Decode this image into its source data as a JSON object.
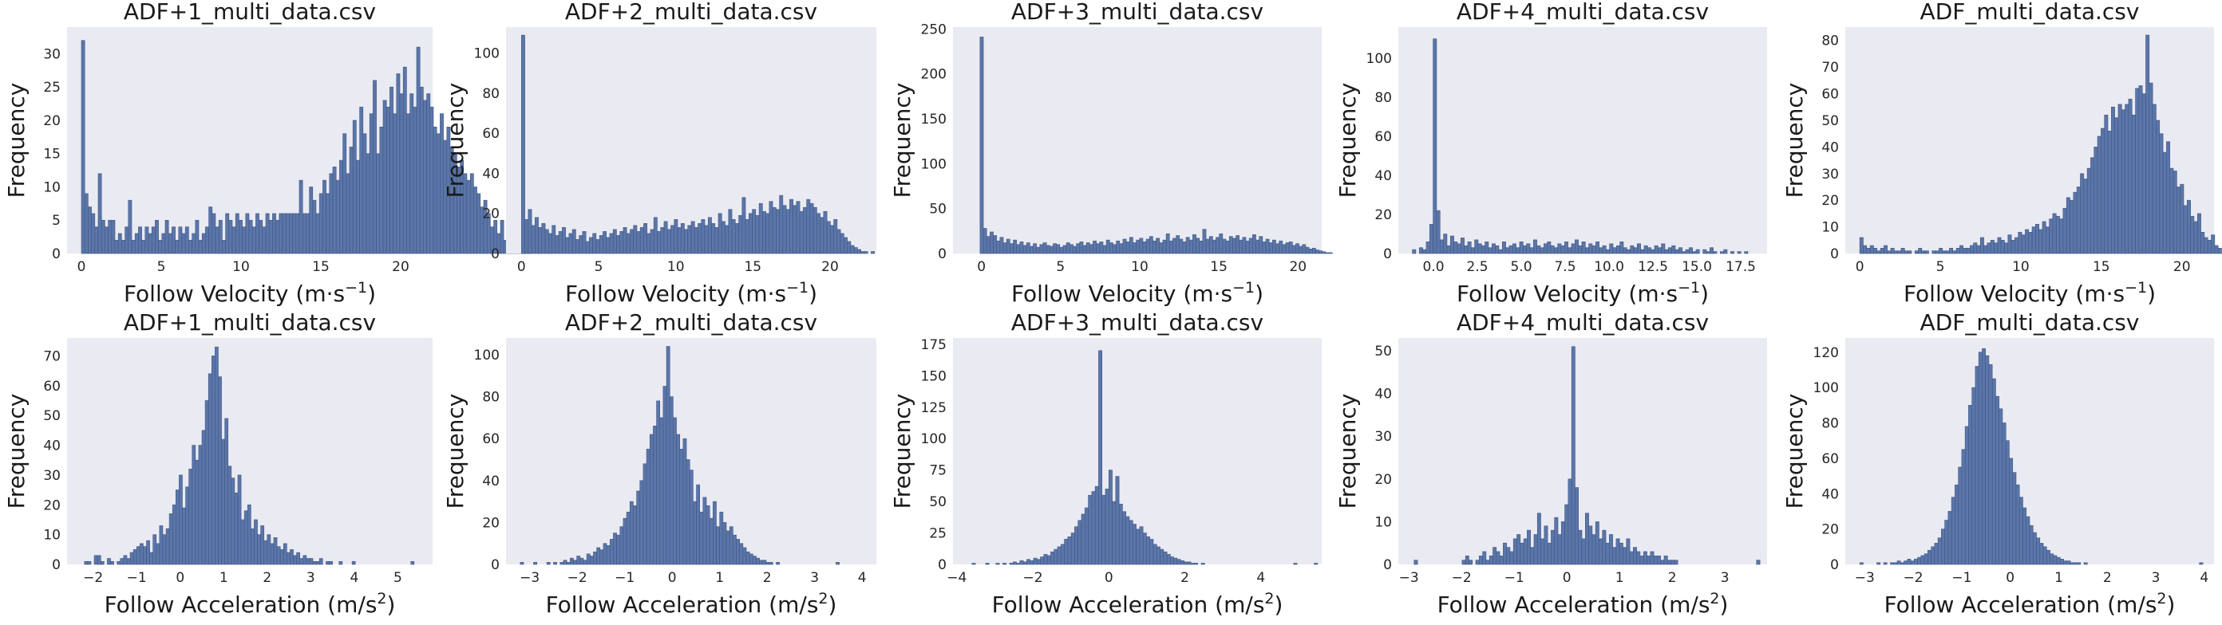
{
  "figure": {
    "axis_labels": {
      "velocity_x": "Follow Velocity (m·s",
      "velocity_x_sup": "−1",
      "velocity_x_end": ")",
      "accel_x": "Follow Acceleration (m/s",
      "accel_x_sup": "2",
      "accel_x_end": ")",
      "y": "Frequency"
    }
  },
  "chart_data": [
    {
      "type": "bar",
      "title": "ADF+1_multi_data.csv",
      "xlabel": "Follow Velocity (m·s−1)",
      "ylabel": "Frequency",
      "xlim": [
        -0.9,
        22.0
      ],
      "ylim": [
        0,
        34
      ],
      "xticks": [
        0,
        5,
        10,
        15,
        20
      ],
      "yticks": [
        0,
        5,
        10,
        15,
        20,
        25,
        30
      ],
      "bin_start": 0.0,
      "bin_width": 0.21,
      "counts": [
        32,
        9,
        7,
        6,
        4,
        12,
        5,
        4,
        5,
        5,
        2,
        3,
        2,
        4,
        8,
        2,
        3,
        4,
        2,
        4,
        3,
        4,
        5,
        2,
        3,
        5,
        3,
        4,
        2,
        4,
        3,
        4,
        2,
        3,
        5,
        2,
        3,
        4,
        7,
        6,
        4,
        5,
        2,
        6,
        5,
        4,
        6,
        5,
        4,
        6,
        5,
        4,
        6,
        5,
        4,
        6,
        5,
        6,
        5,
        6,
        6,
        6,
        6,
        6,
        6,
        11,
        6,
        6,
        10,
        8,
        6,
        9,
        11,
        9,
        12,
        13,
        11,
        14,
        18,
        12,
        16,
        20,
        14,
        22,
        18,
        15,
        21,
        26,
        15,
        19,
        23,
        22,
        25,
        21,
        27,
        24,
        28,
        21,
        24,
        22,
        31,
        25,
        23,
        24,
        22,
        19,
        18,
        21,
        17,
        19,
        16,
        15,
        13,
        14,
        12,
        11,
        12,
        10,
        9,
        7,
        8,
        6,
        4,
        5,
        3,
        5,
        2,
        4,
        3,
        2,
        1,
        2,
        3,
        1,
        0,
        0,
        2,
        0,
        0,
        1
      ],
      "panel": "v1"
    },
    {
      "type": "bar",
      "title": "ADF+2_multi_data.csv",
      "xlabel": "Follow Velocity (m·s−1)",
      "ylabel": "Frequency",
      "xlim": [
        -1.0,
        23.0
      ],
      "ylim": [
        0,
        113
      ],
      "xticks": [
        0,
        5,
        10,
        15,
        20
      ],
      "yticks": [
        0,
        20,
        40,
        60,
        80,
        100
      ],
      "bin_start": 0.0,
      "bin_width": 0.22,
      "counts": [
        109,
        17,
        22,
        14,
        18,
        13,
        15,
        12,
        10,
        14,
        9,
        11,
        13,
        8,
        10,
        12,
        7,
        9,
        11,
        6,
        8,
        10,
        7,
        9,
        11,
        8,
        10,
        12,
        9,
        11,
        13,
        10,
        12,
        14,
        11,
        13,
        15,
        10,
        12,
        18,
        11,
        13,
        16,
        12,
        14,
        17,
        13,
        15,
        12,
        14,
        16,
        13,
        15,
        17,
        14,
        18,
        15,
        13,
        20,
        16,
        14,
        22,
        17,
        15,
        19,
        28,
        17,
        20,
        22,
        19,
        25,
        21,
        20,
        26,
        23,
        22,
        29,
        24,
        22,
        27,
        24,
        26,
        21,
        23,
        27,
        25,
        23,
        20,
        18,
        21,
        16,
        14,
        17,
        12,
        10,
        8,
        6,
        4,
        3,
        2,
        1,
        1,
        0,
        1
      ],
      "panel": "v2"
    },
    {
      "type": "bar",
      "title": "ADF+3_multi_data.csv",
      "xlabel": "Follow Velocity (m·s−1)",
      "ylabel": "Frequency",
      "xlim": [
        -1.8,
        21.5
      ],
      "ylim": [
        0,
        252
      ],
      "xticks": [
        0,
        5,
        10,
        15,
        20
      ],
      "yticks": [
        0,
        50,
        100,
        150,
        200,
        250
      ],
      "bin_start": -0.3,
      "bin_width": 0.21,
      "counts": [
        0,
        241,
        28,
        19,
        24,
        20,
        14,
        18,
        12,
        16,
        11,
        15,
        10,
        13,
        9,
        12,
        8,
        11,
        7,
        10,
        12,
        9,
        8,
        11,
        10,
        7,
        9,
        12,
        10,
        8,
        11,
        13,
        9,
        12,
        10,
        14,
        11,
        13,
        9,
        15,
        12,
        10,
        14,
        11,
        16,
        13,
        18,
        12,
        15,
        17,
        13,
        16,
        19,
        14,
        17,
        12,
        15,
        22,
        14,
        17,
        20,
        16,
        13,
        18,
        15,
        21,
        17,
        14,
        27,
        16,
        19,
        15,
        18,
        22,
        16,
        14,
        19,
        17,
        20,
        15,
        18,
        14,
        17,
        21,
        15,
        19,
        13,
        16,
        12,
        15,
        11,
        14,
        10,
        12,
        13,
        9,
        11,
        8,
        10,
        7,
        5,
        6,
        4,
        3,
        2,
        1,
        1,
        0,
        0
      ],
      "panel": "v3"
    },
    {
      "type": "bar",
      "title": "ADF+4_multi_data.csv",
      "xlabel": "Follow Velocity (m·s−1)",
      "ylabel": "Frequency",
      "xlim": [
        -2.0,
        19.0
      ],
      "ylim": [
        0,
        116
      ],
      "xticks": [
        0.0,
        2.5,
        5.0,
        7.5,
        10.0,
        12.5,
        15.0,
        17.5
      ],
      "yticks": [
        0,
        20,
        40,
        60,
        80,
        100
      ],
      "bin_start": -1.2,
      "bin_width": 0.197,
      "counts": [
        2,
        0,
        3,
        2,
        6,
        15,
        110,
        22,
        7,
        10,
        4,
        9,
        6,
        5,
        8,
        4,
        6,
        3,
        7,
        5,
        4,
        6,
        3,
        5,
        4,
        2,
        6,
        3,
        4,
        5,
        3,
        6,
        4,
        5,
        3,
        7,
        4,
        3,
        5,
        6,
        4,
        3,
        5,
        4,
        6,
        3,
        5,
        7,
        4,
        6,
        3,
        5,
        4,
        6,
        3,
        4,
        2,
        5,
        3,
        4,
        6,
        3,
        2,
        4,
        3,
        5,
        2,
        4,
        3,
        2,
        4,
        3,
        5,
        2,
        3,
        4,
        2,
        3,
        1,
        2,
        3,
        1,
        2,
        0,
        2,
        1,
        3,
        1,
        0,
        1,
        2,
        0,
        1,
        0,
        1,
        0,
        1
      ],
      "panel": "v4"
    },
    {
      "type": "bar",
      "title": "ADF_multi_data.csv",
      "xlabel": "Follow Velocity (m·s−1)",
      "ylabel": "Frequency",
      "xlim": [
        -0.9,
        22.0
      ],
      "ylim": [
        0,
        85
      ],
      "xticks": [
        0,
        5,
        10,
        15,
        20
      ],
      "yticks": [
        0,
        10,
        20,
        30,
        40,
        50,
        60,
        70,
        80
      ],
      "bin_start": 0.0,
      "bin_width": 0.214,
      "counts": [
        6,
        3,
        2,
        3,
        2,
        1,
        2,
        3,
        1,
        2,
        1,
        1,
        2,
        1,
        1,
        0,
        1,
        2,
        1,
        1,
        0,
        1,
        1,
        2,
        1,
        1,
        2,
        1,
        2,
        3,
        2,
        2,
        3,
        4,
        3,
        6,
        3,
        4,
        5,
        4,
        6,
        5,
        4,
        7,
        5,
        6,
        8,
        7,
        9,
        8,
        10,
        11,
        9,
        12,
        10,
        13,
        15,
        14,
        13,
        17,
        21,
        20,
        23,
        25,
        30,
        28,
        32,
        36,
        40,
        44,
        47,
        52,
        46,
        55,
        51,
        56,
        54,
        56,
        58,
        52,
        62,
        63,
        60,
        82,
        64,
        56,
        50,
        45,
        38,
        42,
        32,
        31,
        25,
        26,
        18,
        20,
        14,
        12,
        15,
        8,
        6,
        5,
        7,
        3,
        2
      ],
      "panel": "v5"
    },
    {
      "type": "bar",
      "title": "ADF+1_multi_data.csv",
      "xlabel": "Follow Acceleration (m/s2)",
      "ylabel": "Frequency",
      "xlim": [
        -2.6,
        5.8
      ],
      "ylim": [
        0,
        76
      ],
      "xticks": [
        -2,
        -1,
        0,
        1,
        2,
        3,
        4,
        5
      ],
      "yticks": [
        0,
        10,
        20,
        30,
        40,
        50,
        60,
        70
      ],
      "bin_start": -2.2,
      "bin_width": 0.075,
      "counts": [
        1,
        1,
        0,
        3,
        3,
        1,
        0,
        2,
        1,
        0,
        1,
        2,
        3,
        2,
        4,
        5,
        6,
        7,
        6,
        8,
        4,
        10,
        7,
        13,
        10,
        12,
        17,
        20,
        25,
        30,
        19,
        26,
        32,
        40,
        35,
        40,
        45,
        55,
        64,
        70,
        73,
        63,
        42,
        49,
        33,
        29,
        24,
        30,
        15,
        18,
        20,
        12,
        15,
        10,
        13,
        8,
        10,
        7,
        9,
        6,
        5,
        7,
        4,
        5,
        3,
        4,
        2,
        3,
        2,
        2,
        1,
        1,
        2,
        0,
        1,
        1,
        0,
        0,
        1,
        0,
        0,
        0,
        1,
        0,
        0,
        0,
        0,
        0,
        0,
        0,
        0,
        0,
        0,
        0,
        0,
        0,
        0,
        0,
        0,
        0,
        1
      ],
      "panel": "a1"
    },
    {
      "type": "bar",
      "title": "ADF+2_multi_data.csv",
      "xlabel": "Follow Acceleration (m/s2)",
      "ylabel": "Frequency",
      "xlim": [
        -3.5,
        4.3
      ],
      "ylim": [
        0,
        108
      ],
      "xticks": [
        -3,
        -2,
        -1,
        0,
        1,
        2,
        3,
        4
      ],
      "yticks": [
        0,
        20,
        40,
        60,
        80,
        100
      ],
      "bin_start": -3.2,
      "bin_width": 0.07,
      "counts": [
        1,
        0,
        0,
        0,
        1,
        0,
        0,
        0,
        1,
        0,
        1,
        0,
        1,
        2,
        1,
        3,
        2,
        4,
        3,
        2,
        5,
        4,
        6,
        8,
        7,
        10,
        9,
        12,
        15,
        14,
        18,
        22,
        25,
        30,
        28,
        35,
        40,
        48,
        55,
        62,
        66,
        78,
        70,
        85,
        104,
        80,
        70,
        62,
        55,
        60,
        50,
        45,
        30,
        38,
        25,
        32,
        28,
        22,
        30,
        18,
        25,
        20,
        16,
        18,
        14,
        12,
        10,
        8,
        6,
        5,
        4,
        3,
        2,
        2,
        1,
        1,
        0,
        1,
        0,
        0,
        0,
        0,
        0,
        0,
        0,
        0,
        0,
        0,
        0,
        0,
        0,
        0,
        0,
        0,
        0,
        1
      ],
      "panel": "a2"
    },
    {
      "type": "bar",
      "title": "ADF+3_multi_data.csv",
      "xlabel": "Follow Acceleration (m/s2)",
      "ylabel": "Frequency",
      "xlim": [
        -4.1,
        5.6
      ],
      "ylim": [
        0,
        180
      ],
      "xticks": [
        -4,
        -2,
        0,
        2,
        4
      ],
      "yticks": [
        0,
        25,
        50,
        75,
        100,
        125,
        150,
        175
      ],
      "bin_start": -3.6,
      "bin_width": 0.09,
      "counts": [
        1,
        0,
        0,
        0,
        1,
        0,
        0,
        1,
        0,
        1,
        0,
        1,
        2,
        1,
        3,
        2,
        4,
        3,
        5,
        4,
        6,
        8,
        7,
        10,
        12,
        14,
        16,
        20,
        22,
        25,
        30,
        35,
        40,
        45,
        55,
        58,
        62,
        170,
        55,
        60,
        75,
        50,
        70,
        48,
        42,
        38,
        35,
        32,
        28,
        30,
        25,
        22,
        20,
        16,
        14,
        12,
        10,
        8,
        6,
        5,
        4,
        3,
        2,
        2,
        1,
        1,
        0,
        1,
        0,
        0,
        0,
        0,
        0,
        0,
        0,
        0,
        0,
        0,
        0,
        0,
        0,
        0,
        0,
        0,
        0,
        0,
        0,
        0,
        0,
        0,
        0,
        0,
        0,
        0,
        1,
        0,
        0,
        0,
        0,
        0,
        1
      ],
      "panel": "a3"
    },
    {
      "type": "bar",
      "title": "ADF+4_multi_data.csv",
      "xlabel": "Follow Acceleration (m/s2)",
      "ylabel": "Frequency",
      "xlim": [
        -3.2,
        3.8
      ],
      "ylim": [
        0,
        53
      ],
      "xticks": [
        -3,
        -2,
        -1,
        0,
        1,
        2,
        3
      ],
      "yticks": [
        0,
        10,
        20,
        30,
        40,
        50
      ],
      "bin_start": -2.9,
      "bin_width": 0.065,
      "counts": [
        1,
        0,
        0,
        0,
        0,
        0,
        0,
        0,
        0,
        0,
        0,
        0,
        0,
        0,
        1,
        2,
        1,
        0,
        1,
        2,
        3,
        1,
        2,
        4,
        3,
        2,
        5,
        4,
        3,
        6,
        7,
        5,
        6,
        8,
        4,
        7,
        12,
        6,
        9,
        5,
        8,
        11,
        7,
        10,
        14,
        20,
        51,
        18,
        8,
        6,
        12,
        9,
        7,
        10,
        6,
        8,
        5,
        7,
        4,
        6,
        5,
        4,
        6,
        3,
        4,
        3,
        2,
        3,
        2,
        3,
        2,
        2,
        1,
        2,
        1,
        1,
        1,
        0,
        0,
        0,
        0,
        0,
        0,
        0,
        0,
        0,
        0,
        0,
        0,
        0,
        0,
        0,
        0,
        0,
        0,
        0,
        0,
        0,
        0,
        0,
        1
      ],
      "panel": "a4"
    },
    {
      "type": "bar",
      "title": "ADF_multi_data.csv",
      "xlabel": "Follow Acceleration (m/s2)",
      "ylabel": "Frequency",
      "xlim": [
        -3.4,
        4.2
      ],
      "ylim": [
        0,
        128
      ],
      "xticks": [
        -3,
        -2,
        -1,
        0,
        1,
        2,
        3,
        4
      ],
      "yticks": [
        0,
        20,
        40,
        60,
        80,
        100,
        120
      ],
      "bin_start": -3.1,
      "bin_width": 0.07,
      "counts": [
        1,
        0,
        0,
        0,
        0,
        1,
        0,
        1,
        0,
        1,
        1,
        2,
        1,
        2,
        3,
        2,
        3,
        4,
        5,
        6,
        8,
        10,
        12,
        15,
        20,
        25,
        30,
        38,
        45,
        55,
        65,
        78,
        90,
        100,
        112,
        120,
        122,
        118,
        113,
        105,
        95,
        88,
        80,
        70,
        60,
        52,
        45,
        38,
        32,
        27,
        22,
        18,
        15,
        12,
        10,
        8,
        6,
        5,
        4,
        3,
        2,
        2,
        1,
        1,
        1,
        0,
        1,
        0,
        0,
        0,
        0,
        0,
        0,
        0,
        0,
        0,
        0,
        0,
        0,
        0,
        0,
        0,
        0,
        0,
        0,
        0,
        0,
        0,
        0,
        0,
        0,
        0,
        0,
        0,
        0,
        0,
        0,
        0,
        0,
        0,
        1
      ],
      "panel": "a5"
    }
  ]
}
